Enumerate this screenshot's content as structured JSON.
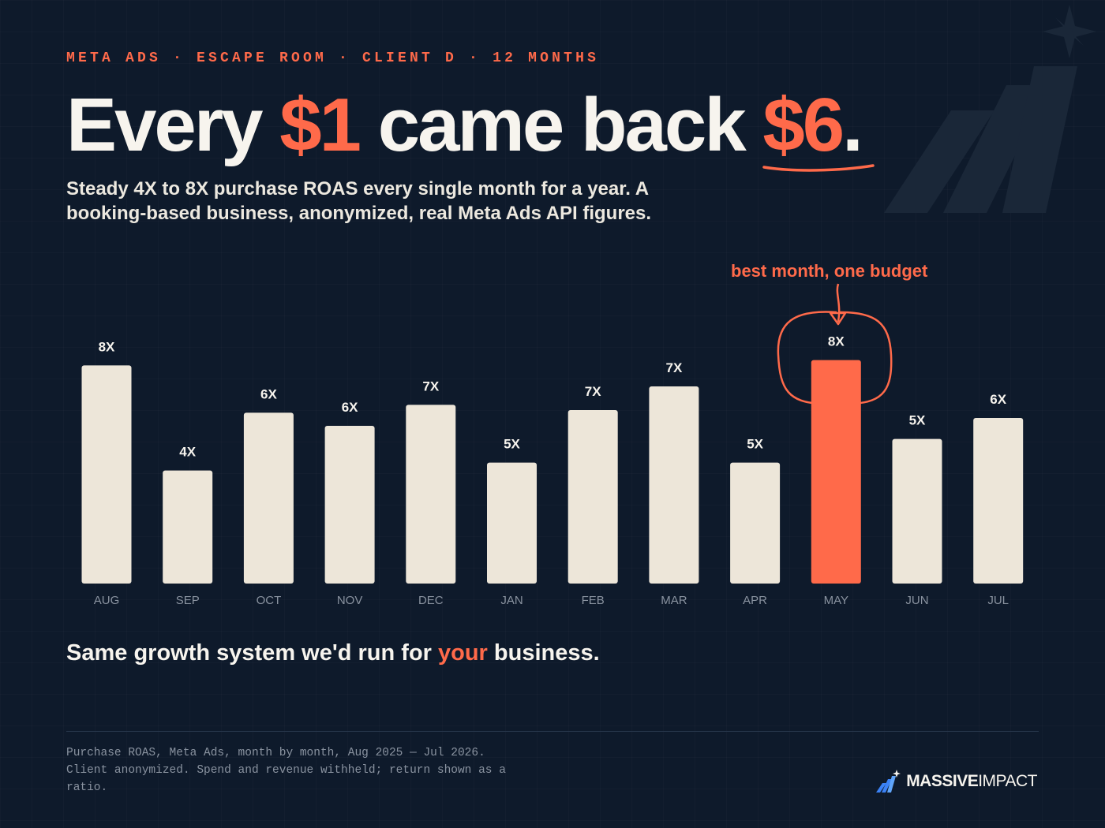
{
  "eyebrow": "META ADS · ESCAPE ROOM · CLIENT D · 12 MONTHS",
  "headline": {
    "part1": "Every ",
    "accent1": "$1",
    "part2": " came back ",
    "accent2": "$6",
    "part3": "."
  },
  "subhead": "Steady 4X to 8X purchase ROAS every single month for a year. A booking-based business, anonymized, real Meta Ads API figures.",
  "callout": "best month, one budget",
  "tagline": {
    "part1": "Same growth system we'd run for ",
    "accent": "your",
    "part2": " business."
  },
  "footnote": "Purchase ROAS, Meta Ads, month by month, Aug 2025 — Jul 2026. Client anonymized. Spend and revenue withheld; return shown as a ratio.",
  "brand": {
    "bold": "MASSIVE",
    "light": "IMPACT"
  },
  "colors": {
    "background": "#0e1a2b",
    "bar": "#ede6d9",
    "highlight": "#ff6a4a",
    "text": "#f7f4ee",
    "muted": "#8a93a0"
  },
  "chart_data": {
    "type": "bar",
    "categories": [
      "AUG",
      "SEP",
      "OCT",
      "NOV",
      "DEC",
      "JAN",
      "FEB",
      "MAR",
      "APR",
      "MAY",
      "JUN",
      "JUL"
    ],
    "values": [
      8.3,
      4.3,
      6.5,
      6.0,
      6.8,
      4.6,
      6.6,
      7.5,
      4.6,
      8.5,
      5.5,
      6.3
    ],
    "labels": [
      "8X",
      "4X",
      "6X",
      "6X",
      "7X",
      "5X",
      "7X",
      "7X",
      "5X",
      "8X",
      "5X",
      "6X"
    ],
    "highlight_category": "MAY",
    "ylim": [
      0,
      9
    ],
    "grid": false,
    "title": "",
    "xlabel": "",
    "ylabel": ""
  }
}
